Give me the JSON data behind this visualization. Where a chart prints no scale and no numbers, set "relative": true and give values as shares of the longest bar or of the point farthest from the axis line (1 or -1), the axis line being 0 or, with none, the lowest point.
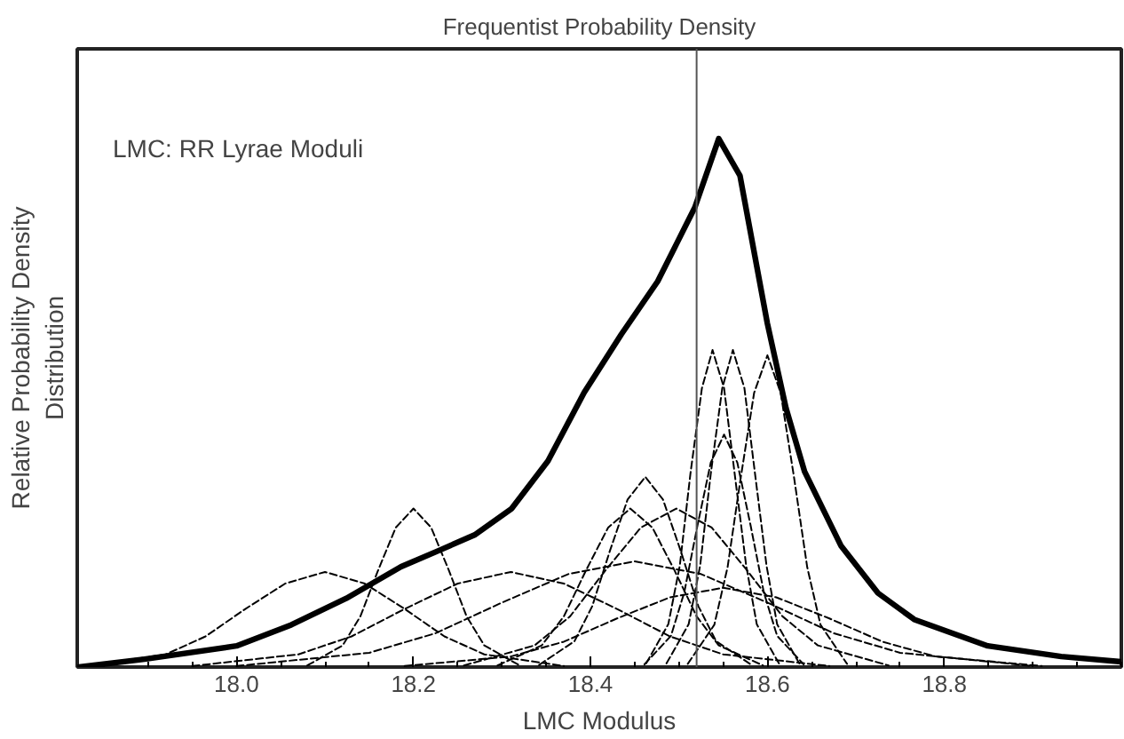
{
  "chart_data": {
    "type": "line",
    "title": "Frequentist Probability Density",
    "xlabel": "LMC Modulus",
    "ylabel": "Relative Probability Density\nDistribution",
    "relative": true,
    "xlim": [
      17.82,
      19.0
    ],
    "xticks": [
      {
        "value": 18.0,
        "label": "18.0"
      },
      18.2,
      18.4,
      18.6,
      18.8
    ],
    "tick_labels": "x",
    "grid": false,
    "annotations": [
      "LMC: RR Lyrae Moduli"
    ],
    "ref_lines": [
      {
        "axis": "x",
        "value": 18.52,
        "color": "#555555",
        "line_style": "solid"
      }
    ],
    "series": [
      {
        "color": "#000000",
        "line_style": "solid",
        "x": [
          17.822,
          17.896,
          18.0,
          18.062,
          18.124,
          18.186,
          18.228,
          18.269,
          18.311,
          18.352,
          18.393,
          18.435,
          18.476,
          18.497,
          18.518,
          18.545,
          18.569,
          18.6,
          18.621,
          18.642,
          18.683,
          18.725,
          18.766,
          18.849,
          18.932,
          19.0
        ],
        "values": [
          0.0,
          0.015,
          0.04,
          0.08,
          0.13,
          0.19,
          0.22,
          0.25,
          0.3,
          0.39,
          0.52,
          0.63,
          0.73,
          0.8,
          0.87,
          1.0,
          0.93,
          0.65,
          0.49,
          0.37,
          0.23,
          0.14,
          0.09,
          0.04,
          0.02,
          0.01
        ]
      },
      {
        "color": "#000000",
        "line_style": "dashed",
        "x": [
          18.08,
          18.12,
          18.14,
          18.16,
          18.18,
          18.2,
          18.22,
          18.24,
          18.26,
          18.28,
          18.32
        ],
        "values": [
          0.003,
          0.041,
          0.096,
          0.183,
          0.264,
          0.3,
          0.264,
          0.183,
          0.096,
          0.041,
          0.003
        ]
      },
      {
        "color": "#000000",
        "line_style": "dashed",
        "x": [
          17.83,
          17.92,
          17.965,
          18.01,
          18.055,
          18.1,
          18.145,
          18.19,
          18.235,
          18.28,
          18.37
        ],
        "values": [
          0.002,
          0.024,
          0.058,
          0.11,
          0.158,
          0.18,
          0.158,
          0.11,
          0.058,
          0.024,
          0.002
        ]
      },
      {
        "color": "#000000",
        "line_style": "dashed",
        "x": [
          18.463,
          18.488,
          18.501,
          18.513,
          18.526,
          18.538,
          18.551,
          18.563,
          18.576,
          18.588,
          18.613
        ],
        "values": [
          0.007,
          0.081,
          0.192,
          0.366,
          0.528,
          0.6,
          0.528,
          0.366,
          0.192,
          0.081,
          0.007
        ]
      },
      {
        "color": "#000000",
        "line_style": "dashed",
        "x": [
          18.486,
          18.511,
          18.524,
          18.536,
          18.549,
          18.561,
          18.574,
          18.586,
          18.599,
          18.611,
          18.636
        ],
        "values": [
          0.007,
          0.081,
          0.192,
          0.366,
          0.528,
          0.6,
          0.528,
          0.366,
          0.192,
          0.081,
          0.007
        ]
      },
      {
        "color": "#000000",
        "line_style": "dashed",
        "x": [
          18.51,
          18.54,
          18.555,
          18.57,
          18.585,
          18.6,
          18.615,
          18.63,
          18.645,
          18.66,
          18.69
        ],
        "values": [
          0.006,
          0.08,
          0.189,
          0.36,
          0.519,
          0.59,
          0.519,
          0.36,
          0.189,
          0.08,
          0.006
        ]
      },
      {
        "color": "#000000",
        "line_style": "dashed",
        "x": [
          18.461,
          18.491,
          18.506,
          18.521,
          18.536,
          18.551,
          18.566,
          18.581,
          18.596,
          18.611,
          18.641
        ],
        "values": [
          0.005,
          0.059,
          0.141,
          0.268,
          0.387,
          0.44,
          0.387,
          0.268,
          0.141,
          0.059,
          0.005
        ]
      },
      {
        "color": "#000000",
        "line_style": "dashed",
        "x": [
          18.342,
          18.382,
          18.402,
          18.422,
          18.442,
          18.462,
          18.482,
          18.502,
          18.522,
          18.542,
          18.582
        ],
        "values": [
          0.004,
          0.049,
          0.115,
          0.22,
          0.317,
          0.36,
          0.317,
          0.22,
          0.115,
          0.049,
          0.004
        ]
      },
      {
        "color": "#000000",
        "line_style": "dashed",
        "x": [
          18.295,
          18.345,
          18.37,
          18.395,
          18.42,
          18.445,
          18.47,
          18.495,
          18.52,
          18.545,
          18.595
        ],
        "values": [
          0.003,
          0.041,
          0.096,
          0.183,
          0.264,
          0.3,
          0.264,
          0.183,
          0.096,
          0.041,
          0.003
        ]
      },
      {
        "color": "#000000",
        "line_style": "dashed",
        "x": [
          18.257,
          18.337,
          18.377,
          18.417,
          18.457,
          18.497,
          18.537,
          18.577,
          18.617,
          18.657,
          18.737
        ],
        "values": [
          0.003,
          0.041,
          0.096,
          0.183,
          0.264,
          0.3,
          0.264,
          0.183,
          0.096,
          0.041,
          0.003
        ]
      },
      {
        "color": "#000000",
        "line_style": "dashed",
        "x": [
          17.95,
          18.07,
          18.13,
          18.19,
          18.25,
          18.31,
          18.37,
          18.43,
          18.49,
          18.55,
          18.67
        ],
        "values": [
          0.002,
          0.024,
          0.058,
          0.11,
          0.158,
          0.18,
          0.158,
          0.11,
          0.058,
          0.024,
          0.002
        ]
      },
      {
        "color": "#000000",
        "line_style": "dashed",
        "x": [
          18.0,
          18.15,
          18.225,
          18.3,
          18.375,
          18.45,
          18.525,
          18.6,
          18.675,
          18.75,
          18.9
        ],
        "values": [
          0.002,
          0.027,
          0.064,
          0.122,
          0.176,
          0.2,
          0.176,
          0.122,
          0.064,
          0.027,
          0.002
        ]
      },
      {
        "color": "#000000",
        "line_style": "dashed",
        "x": [
          18.19,
          18.31,
          18.37,
          18.43,
          18.49,
          18.55,
          18.61,
          18.67,
          18.73,
          18.79,
          18.91
        ],
        "values": [
          0.002,
          0.02,
          0.048,
          0.092,
          0.132,
          0.15,
          0.132,
          0.092,
          0.048,
          0.02,
          0.002
        ]
      }
    ]
  }
}
